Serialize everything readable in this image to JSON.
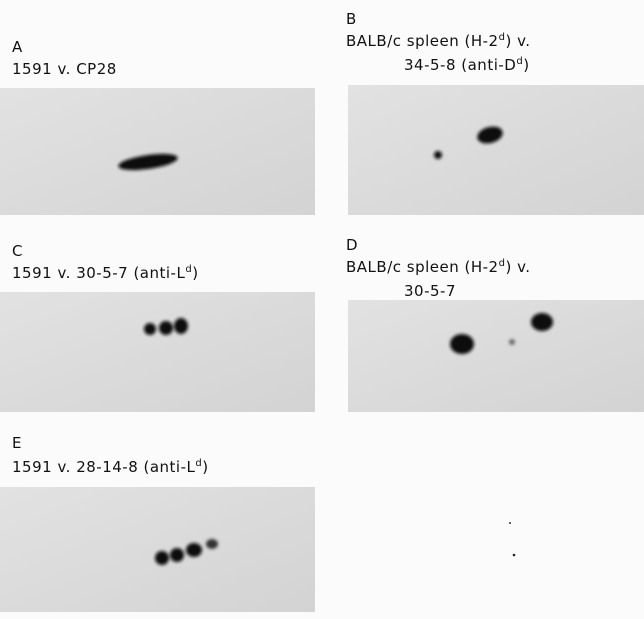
{
  "panels": [
    {
      "letter": "A",
      "lines": [
        [
          {
            "text": "1591 v. CP28"
          }
        ]
      ]
    },
    {
      "letter": "B",
      "lines": [
        [
          {
            "text": "BALB/c spleen (H-2"
          },
          {
            "sup": "d"
          },
          {
            "text": ") v."
          }
        ],
        [
          {
            "text": "34-5-8 (anti-D"
          },
          {
            "sup": "d"
          },
          {
            "text": ")"
          }
        ]
      ]
    },
    {
      "letter": "C",
      "lines": [
        [
          {
            "text": "1591 v. 30-5-7 (anti-L"
          },
          {
            "sup": "d"
          },
          {
            "text": ")"
          }
        ]
      ]
    },
    {
      "letter": "D",
      "lines": [
        [
          {
            "text": "BALB/c spleen (H-2"
          },
          {
            "sup": "d"
          },
          {
            "text": ") v."
          }
        ],
        [
          {
            "text": "30-5-7"
          }
        ]
      ]
    },
    {
      "letter": "E",
      "lines": [
        [
          {
            "text": "1591 v. 28-14-8 (anti-L"
          },
          {
            "sup": "d"
          },
          {
            "text": ")"
          }
        ]
      ]
    }
  ]
}
